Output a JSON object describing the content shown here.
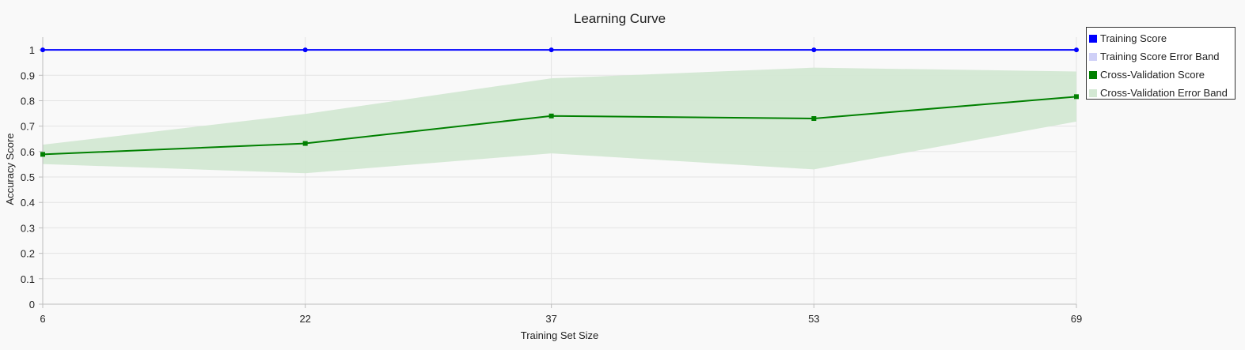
{
  "chart_data": {
    "type": "line",
    "title": "Learning Curve",
    "xlabel": "Training Set Size",
    "ylabel": "Accuracy Score",
    "x": [
      6,
      22,
      37,
      53,
      69
    ],
    "xticks": [
      "6",
      "22",
      "37",
      "53",
      "69"
    ],
    "ylim": [
      0,
      1.05
    ],
    "yticks": [
      "0",
      "0.1",
      "0.2",
      "0.3",
      "0.4",
      "0.5",
      "0.6",
      "0.7",
      "0.8",
      "0.9",
      "1"
    ],
    "grid": true,
    "legend_position": "top-right",
    "series": [
      {
        "name": "Training Score",
        "color": "#0000ff",
        "values": [
          1.0,
          1.0,
          1.0,
          1.0,
          1.0
        ],
        "marker": "circle"
      },
      {
        "name": "Cross-Validation Score",
        "color": "#008000",
        "values": [
          0.589,
          0.632,
          0.74,
          0.73,
          0.816
        ],
        "marker": "square"
      }
    ],
    "bands": [
      {
        "name": "Training Score Error Band",
        "color": "#c8c8f5",
        "upper": [
          1.0,
          1.0,
          1.0,
          1.0,
          1.0
        ],
        "lower": [
          1.0,
          1.0,
          1.0,
          1.0,
          1.0
        ]
      },
      {
        "name": "Cross-Validation Error Band",
        "color": "#d3e8d3",
        "upper": [
          0.627,
          0.748,
          0.888,
          0.93,
          0.915
        ],
        "lower": [
          0.551,
          0.515,
          0.593,
          0.53,
          0.718
        ]
      }
    ],
    "legend": [
      {
        "label": "Training Score",
        "color": "#0000ff"
      },
      {
        "label": "Training Score Error Band",
        "color": "#cfd0f7"
      },
      {
        "label": "Cross-Validation Score",
        "color": "#008000"
      },
      {
        "label": "Cross-Validation Error Band",
        "color": "#d3e8d3"
      }
    ]
  }
}
